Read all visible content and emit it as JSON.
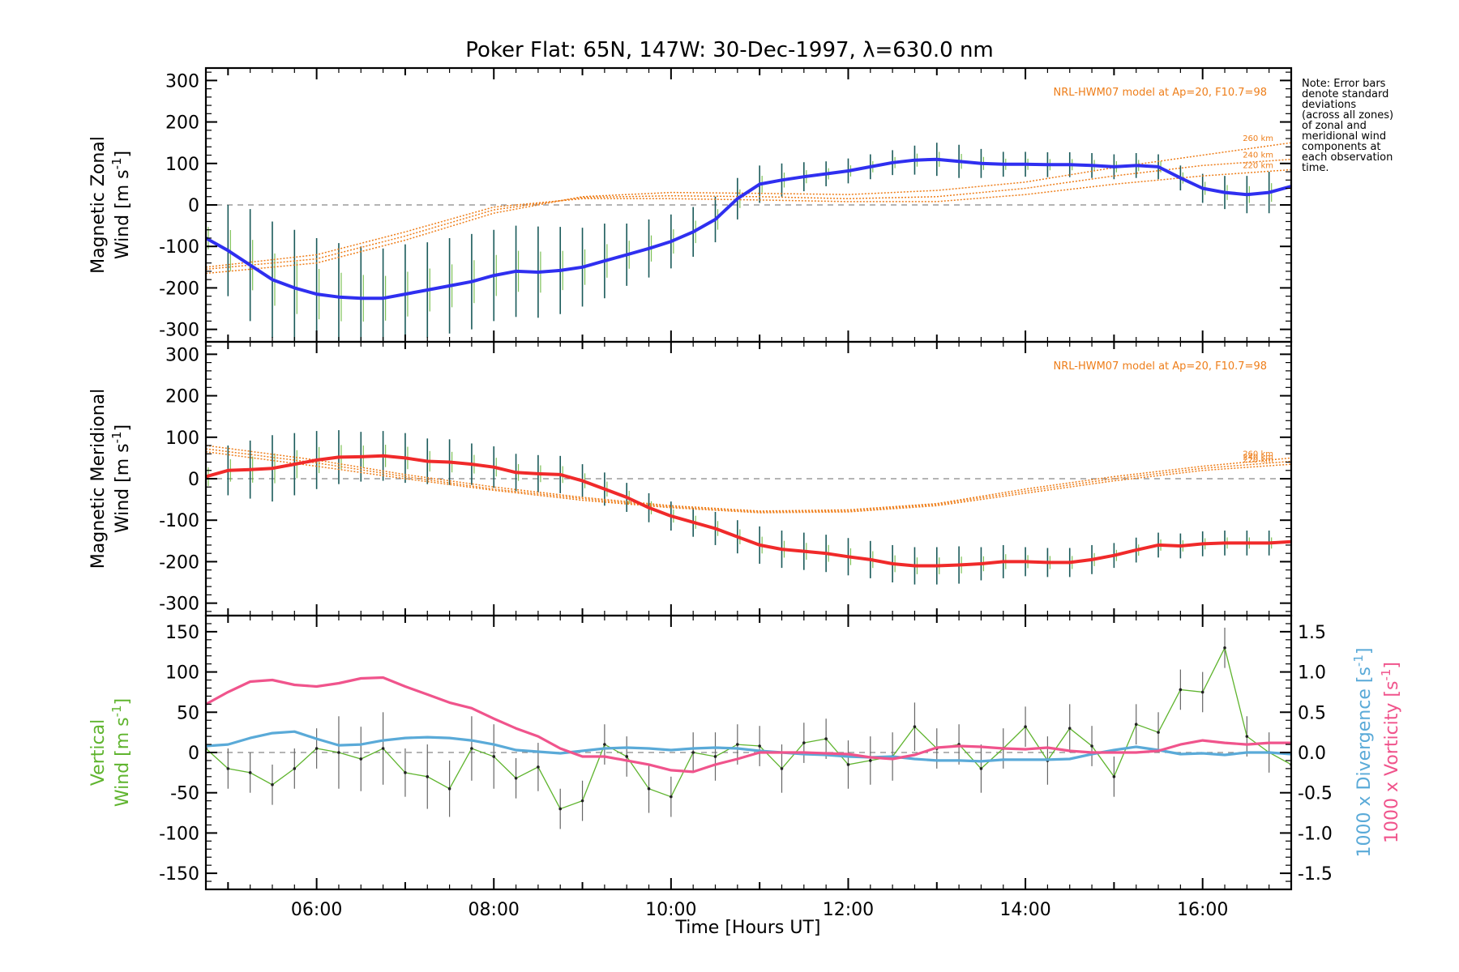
{
  "title": "Poker Flat: 65N, 147W: 30-Dec-1997, λ=630.0 nm",
  "note_lines": [
    "Note: Error bars",
    "denote standard",
    "deviations",
    "(across all zones)",
    "of zonal and",
    "meridional wind",
    "components at",
    "each observation",
    "time."
  ],
  "colors": {
    "zonal": "#2f2ff0",
    "meridional": "#f02a2a",
    "model": "#ee7e1a",
    "errorbar": "#1a5a5a",
    "vertical": "#5fb42e",
    "divergence": "#5aaad8",
    "vorticity": "#f0548c",
    "zero": "#888888"
  },
  "chart_data": [
    {
      "type": "line",
      "panel": "zonal",
      "ylabel_line1": "Magnetic Zonal",
      "ylabel_line2": "Wind [m s",
      "ylabel_sup": "-1",
      "ylabel_close": "]",
      "ylim": [
        -330,
        330
      ],
      "yticks": [
        -300,
        -200,
        -100,
        0,
        100,
        200,
        300
      ],
      "xlim": [
        4.75,
        17.0
      ],
      "model_label": "NRL-HWM07 model at Ap=20, F10.7=98",
      "model_alt_labels": [
        "260 km",
        "240 km",
        "220 km"
      ],
      "series": [
        {
          "name": "Zonal wind",
          "x": [
            4.75,
            5.0,
            5.25,
            5.5,
            5.75,
            6.0,
            6.25,
            6.5,
            6.75,
            7.0,
            7.25,
            7.5,
            7.75,
            8.0,
            8.25,
            8.5,
            8.75,
            9.0,
            9.25,
            9.5,
            9.75,
            10.0,
            10.25,
            10.5,
            10.75,
            11.0,
            11.25,
            11.5,
            11.75,
            12.0,
            12.25,
            12.5,
            12.75,
            13.0,
            13.25,
            13.5,
            13.75,
            14.0,
            14.25,
            14.5,
            14.75,
            15.0,
            15.25,
            15.5,
            15.75,
            16.0,
            16.25,
            16.5,
            16.75,
            17.0
          ],
          "y": [
            -80,
            -110,
            -145,
            -180,
            -200,
            -215,
            -222,
            -225,
            -225,
            -215,
            -205,
            -195,
            -185,
            -170,
            -160,
            -162,
            -158,
            -150,
            -135,
            -120,
            -105,
            -88,
            -65,
            -35,
            15,
            50,
            60,
            68,
            75,
            82,
            92,
            102,
            108,
            110,
            105,
            100,
            98,
            98,
            97,
            97,
            95,
            92,
            95,
            92,
            65,
            40,
            30,
            25,
            30,
            45
          ],
          "err": [
            60,
            110,
            135,
            140,
            140,
            135,
            130,
            125,
            120,
            120,
            115,
            115,
            115,
            110,
            110,
            110,
            105,
            95,
            90,
            75,
            70,
            65,
            60,
            55,
            50,
            45,
            40,
            35,
            30,
            30,
            30,
            30,
            35,
            40,
            40,
            35,
            30,
            30,
            30,
            30,
            30,
            30,
            30,
            30,
            30,
            35,
            40,
            45,
            50,
            55
          ]
        },
        {
          "name": "Model 260 km",
          "x": [
            4.75,
            6,
            7,
            8,
            9,
            10,
            11,
            12,
            13,
            14,
            15,
            16,
            17
          ],
          "y": [
            -165,
            -140,
            -85,
            -20,
            20,
            30,
            28,
            25,
            35,
            55,
            90,
            120,
            150
          ]
        },
        {
          "name": "Model 240 km",
          "x": [
            4.75,
            6,
            7,
            8,
            9,
            10,
            11,
            12,
            13,
            14,
            15,
            16,
            17
          ],
          "y": [
            -155,
            -130,
            -75,
            -12,
            18,
            22,
            20,
            15,
            20,
            40,
            70,
            95,
            110
          ]
        },
        {
          "name": "Model 220 km",
          "x": [
            4.75,
            6,
            7,
            8,
            9,
            10,
            11,
            12,
            13,
            14,
            15,
            16,
            17
          ],
          "y": [
            -150,
            -120,
            -65,
            -5,
            15,
            15,
            12,
            8,
            8,
            25,
            50,
            70,
            85
          ]
        }
      ]
    },
    {
      "type": "line",
      "panel": "meridional",
      "ylabel_line1": "Magnetic Meridional",
      "ylabel_line2": "Wind [m s",
      "ylabel_sup": "-1",
      "ylabel_close": "]",
      "ylim": [
        -330,
        330
      ],
      "yticks": [
        -300,
        -200,
        -100,
        0,
        100,
        200,
        300
      ],
      "xlim": [
        4.75,
        17.0
      ],
      "model_label": "NRL-HWM07 model at Ap=20, F10.7=98",
      "model_alt_labels": [
        "260 km",
        "240 km",
        "220 km"
      ],
      "series": [
        {
          "name": "Meridional wind",
          "x": [
            4.75,
            5.0,
            5.25,
            5.5,
            5.75,
            6.0,
            6.25,
            6.5,
            6.75,
            7.0,
            7.25,
            7.5,
            7.75,
            8.0,
            8.25,
            8.5,
            8.75,
            9.0,
            9.25,
            9.5,
            9.75,
            10.0,
            10.25,
            10.5,
            10.75,
            11.0,
            11.25,
            11.5,
            11.75,
            12.0,
            12.25,
            12.5,
            12.75,
            13.0,
            13.25,
            13.5,
            13.75,
            14.0,
            14.25,
            14.5,
            14.75,
            15.0,
            15.25,
            15.5,
            15.75,
            16.0,
            16.25,
            16.5,
            16.75,
            17.0
          ],
          "y": [
            5,
            20,
            22,
            25,
            35,
            45,
            52,
            53,
            55,
            50,
            42,
            40,
            35,
            28,
            15,
            12,
            10,
            -5,
            -25,
            -45,
            -70,
            -90,
            -105,
            -120,
            -140,
            -160,
            -170,
            -175,
            -180,
            -188,
            -195,
            -205,
            -210,
            -210,
            -208,
            -205,
            -200,
            -200,
            -202,
            -202,
            -195,
            -185,
            -172,
            -160,
            -162,
            -157,
            -155,
            -155,
            -155,
            -152
          ],
          "err": [
            50,
            60,
            70,
            80,
            75,
            70,
            65,
            60,
            60,
            60,
            55,
            55,
            50,
            50,
            45,
            45,
            45,
            40,
            40,
            35,
            35,
            35,
            35,
            40,
            40,
            45,
            45,
            45,
            45,
            45,
            45,
            45,
            45,
            45,
            45,
            40,
            40,
            35,
            35,
            35,
            35,
            30,
            30,
            30,
            30,
            30,
            30,
            30,
            30,
            30
          ]
        },
        {
          "name": "Model 260 km",
          "x": [
            4.75,
            6,
            7,
            8,
            9,
            10,
            11,
            12,
            13,
            14,
            15,
            16,
            17
          ],
          "y": [
            80,
            45,
            10,
            -20,
            -45,
            -65,
            -78,
            -75,
            -60,
            -25,
            5,
            30,
            50
          ]
        },
        {
          "name": "Model 240 km",
          "x": [
            4.75,
            6,
            7,
            8,
            9,
            10,
            11,
            12,
            13,
            14,
            15,
            16,
            17
          ],
          "y": [
            72,
            38,
            5,
            -25,
            -48,
            -68,
            -80,
            -78,
            -62,
            -30,
            0,
            25,
            42
          ]
        },
        {
          "name": "Model 220 km",
          "x": [
            4.75,
            6,
            7,
            8,
            9,
            10,
            11,
            12,
            13,
            14,
            15,
            16,
            17
          ],
          "y": [
            65,
            30,
            0,
            -28,
            -52,
            -70,
            -82,
            -80,
            -65,
            -35,
            -5,
            20,
            35
          ]
        }
      ]
    },
    {
      "type": "line",
      "panel": "vertical",
      "ylabel_line1": "Vertical",
      "ylabel_line2": "Wind [m s",
      "ylabel_sup": "-1",
      "ylabel_close": "]",
      "ylim": [
        -170,
        170
      ],
      "yticks": [
        -150,
        -100,
        -50,
        0,
        50,
        100,
        150
      ],
      "y2lim": [
        -1.7,
        1.7
      ],
      "y2ticks": [
        -1.5,
        -1.0,
        -0.5,
        0.0,
        0.5,
        1.0,
        1.5
      ],
      "y2label_div": "1000 x Divergence [s",
      "y2label_vort": "1000 x Vorticity [s",
      "y2label_sup": "-1",
      "y2label_close": "]",
      "xlim": [
        4.75,
        17.0
      ],
      "xticks": [
        6,
        8,
        10,
        12,
        14,
        16
      ],
      "xticklabels": [
        "06:00",
        "08:00",
        "10:00",
        "12:00",
        "14:00",
        "16:00"
      ],
      "xlabel": "Time [Hours UT]",
      "series": [
        {
          "name": "Vertical wind",
          "x": [
            4.75,
            5.0,
            5.25,
            5.5,
            5.75,
            6.0,
            6.25,
            6.5,
            6.75,
            7.0,
            7.25,
            7.5,
            7.75,
            8.0,
            8.25,
            8.5,
            8.75,
            9.0,
            9.25,
            9.5,
            9.75,
            10.0,
            10.25,
            10.5,
            10.75,
            11.0,
            11.25,
            11.5,
            11.75,
            12.0,
            12.25,
            12.5,
            12.75,
            13.0,
            13.25,
            13.5,
            13.75,
            14.0,
            14.25,
            14.5,
            14.75,
            15.0,
            15.25,
            15.5,
            15.75,
            16.0,
            16.25,
            16.5,
            16.75,
            17.0
          ],
          "y": [
            5,
            -20,
            -25,
            -40,
            -20,
            5,
            0,
            -8,
            5,
            -25,
            -30,
            -45,
            5,
            -5,
            -32,
            -18,
            -70,
            -60,
            10,
            -5,
            -45,
            -55,
            0,
            -5,
            10,
            8,
            -20,
            12,
            17,
            -15,
            -10,
            -5,
            32,
            5,
            10,
            -20,
            5,
            32,
            -10,
            30,
            8,
            -30,
            35,
            25,
            78,
            75,
            130,
            20,
            0,
            -15
          ],
          "err": [
            25,
            25,
            25,
            25,
            25,
            25,
            45,
            40,
            45,
            30,
            40,
            35,
            40,
            40,
            25,
            30,
            25,
            25,
            25,
            25,
            30,
            25,
            25,
            30,
            25,
            25,
            30,
            25,
            25,
            30,
            30,
            30,
            30,
            25,
            25,
            30,
            25,
            25,
            30,
            30,
            25,
            25,
            25,
            25,
            25,
            25,
            25,
            25,
            25,
            20
          ]
        },
        {
          "name": "1000 x Divergence",
          "x": [
            4.75,
            5.0,
            5.25,
            5.5,
            5.75,
            6.0,
            6.25,
            6.5,
            6.75,
            7.0,
            7.25,
            7.5,
            7.75,
            8.0,
            8.25,
            8.5,
            8.75,
            9.0,
            9.25,
            9.5,
            9.75,
            10.0,
            10.25,
            10.5,
            10.75,
            11.0,
            11.25,
            11.5,
            11.75,
            12.0,
            12.25,
            12.5,
            12.75,
            13.0,
            13.25,
            13.5,
            13.75,
            14.0,
            14.25,
            14.5,
            14.75,
            15.0,
            15.25,
            15.5,
            15.75,
            16.0,
            16.25,
            16.5,
            16.75,
            17.0
          ],
          "y": [
            0.08,
            0.1,
            0.18,
            0.24,
            0.26,
            0.17,
            0.09,
            0.1,
            0.15,
            0.18,
            0.19,
            0.18,
            0.15,
            0.1,
            0.03,
            0.01,
            -0.01,
            0.02,
            0.05,
            0.06,
            0.05,
            0.03,
            0.05,
            0.06,
            0.05,
            0.02,
            0.0,
            -0.02,
            -0.03,
            -0.05,
            -0.06,
            -0.05,
            -0.08,
            -0.1,
            -0.1,
            -0.11,
            -0.09,
            -0.09,
            -0.09,
            -0.08,
            -0.02,
            0.03,
            0.07,
            0.03,
            -0.02,
            -0.01,
            -0.03,
            0.0,
            0.0,
            -0.02
          ]
        },
        {
          "name": "1000 x Vorticity",
          "x": [
            4.75,
            5.0,
            5.25,
            5.5,
            5.75,
            6.0,
            6.25,
            6.5,
            6.75,
            7.0,
            7.25,
            7.5,
            7.75,
            8.0,
            8.25,
            8.5,
            8.75,
            9.0,
            9.25,
            9.5,
            9.75,
            10.0,
            10.25,
            10.5,
            10.75,
            11.0,
            11.25,
            11.5,
            11.75,
            12.0,
            12.25,
            12.5,
            12.75,
            13.0,
            13.25,
            13.5,
            13.75,
            14.0,
            14.25,
            14.5,
            14.75,
            15.0,
            15.25,
            15.5,
            15.75,
            16.0,
            16.25,
            16.5,
            16.75,
            17.0
          ],
          "y": [
            0.6,
            0.75,
            0.88,
            0.9,
            0.84,
            0.82,
            0.86,
            0.92,
            0.93,
            0.82,
            0.72,
            0.62,
            0.55,
            0.42,
            0.3,
            0.2,
            0.05,
            -0.05,
            -0.05,
            -0.1,
            -0.15,
            -0.22,
            -0.24,
            -0.15,
            -0.08,
            0.0,
            0.0,
            0.0,
            -0.01,
            -0.02,
            -0.06,
            -0.08,
            -0.03,
            0.06,
            0.08,
            0.07,
            0.05,
            0.04,
            0.06,
            0.02,
            0.0,
            0.0,
            0.0,
            0.02,
            0.1,
            0.15,
            0.12,
            0.1,
            0.12,
            0.12
          ]
        }
      ]
    }
  ]
}
